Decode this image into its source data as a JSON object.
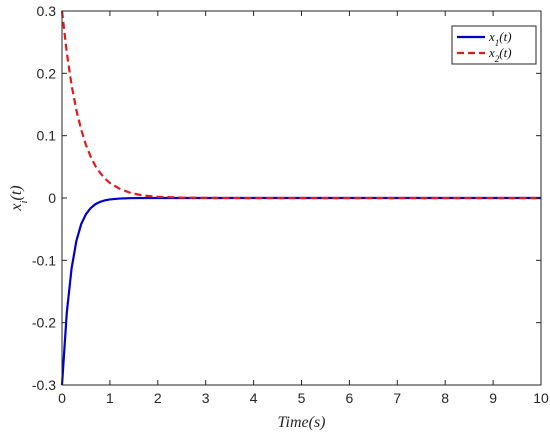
{
  "chart_data": {
    "type": "line",
    "xlabel": "Time(s)",
    "ylabel": "x_i(t)",
    "xlim": [
      0,
      10
    ],
    "ylim": [
      -0.3,
      0.3
    ],
    "xticks": [
      0,
      1,
      2,
      3,
      4,
      5,
      6,
      7,
      8,
      9,
      10
    ],
    "yticks": [
      -0.3,
      -0.2,
      -0.1,
      0,
      0.1,
      0.2,
      0.3
    ],
    "ytick_labels": [
      "-0.3",
      "-0.2",
      "-0.1",
      "0",
      "0.1",
      "0.2",
      "0.3"
    ],
    "grid": false,
    "legend_position": "top-right",
    "x": [
      0,
      0.1,
      0.2,
      0.3,
      0.4,
      0.5,
      0.6,
      0.7,
      0.8,
      0.9,
      1.0,
      1.2,
      1.4,
      1.6,
      1.8,
      2.0,
      2.5,
      3,
      4,
      5,
      6,
      7,
      8,
      9,
      10
    ],
    "series": [
      {
        "name": "x_1(t)",
        "color": "#0000cc",
        "line_style": "solid",
        "values": [
          -0.3,
          -0.184,
          -0.113,
          -0.069,
          -0.042,
          -0.026,
          -0.016,
          -0.0098,
          -0.006,
          -0.0037,
          -0.0023,
          -0.00086,
          -0.00032,
          -0.00012,
          -5e-05,
          -2e-05,
          0,
          0,
          0,
          0,
          0,
          0,
          0,
          0,
          0
        ]
      },
      {
        "name": "x_2(t)",
        "color": "#e31a1c",
        "line_style": "dashed",
        "values": [
          0.3,
          0.233,
          0.181,
          0.141,
          0.11,
          0.085,
          0.066,
          0.051,
          0.04,
          0.031,
          0.024,
          0.015,
          0.009,
          0.0054,
          0.0032,
          0.0019,
          0.0006,
          0.0002,
          0,
          0,
          0,
          0,
          0,
          0,
          0
        ]
      }
    ],
    "legend": {
      "entries": [
        {
          "main": "x",
          "sub": "1",
          "suffix": "(t)"
        },
        {
          "main": "x",
          "sub": "2",
          "suffix": "(t)"
        }
      ]
    },
    "ylabel_parts": {
      "main": "x",
      "sub": "i",
      "suffix": "(t)"
    }
  }
}
